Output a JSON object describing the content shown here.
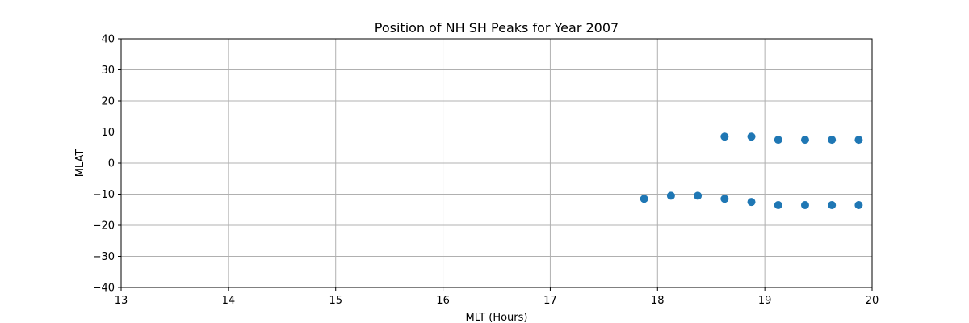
{
  "chart_data": {
    "type": "scatter",
    "title": "Position of NH SH Peaks for Year 2007",
    "xlabel": "MLT (Hours)",
    "ylabel": "MLAT",
    "xlim": [
      13,
      20
    ],
    "ylim": [
      -40,
      40
    ],
    "xticks": [
      13,
      14,
      15,
      16,
      17,
      18,
      19,
      20
    ],
    "yticks": [
      -40,
      -30,
      -20,
      -10,
      0,
      10,
      20,
      30,
      40
    ],
    "grid": true,
    "marker_color": "#1f77b4",
    "points": [
      {
        "x": 18.625,
        "y": 8.5
      },
      {
        "x": 18.875,
        "y": 8.5
      },
      {
        "x": 19.125,
        "y": 7.5
      },
      {
        "x": 19.375,
        "y": 7.5
      },
      {
        "x": 19.625,
        "y": 7.5
      },
      {
        "x": 19.875,
        "y": 7.5
      },
      {
        "x": 17.875,
        "y": -11.5
      },
      {
        "x": 18.125,
        "y": -10.5
      },
      {
        "x": 18.375,
        "y": -10.5
      },
      {
        "x": 18.625,
        "y": -11.5
      },
      {
        "x": 18.875,
        "y": -12.5
      },
      {
        "x": 19.125,
        "y": -13.5
      },
      {
        "x": 19.375,
        "y": -13.5
      },
      {
        "x": 19.625,
        "y": -13.5
      },
      {
        "x": 19.875,
        "y": -13.5
      }
    ]
  }
}
